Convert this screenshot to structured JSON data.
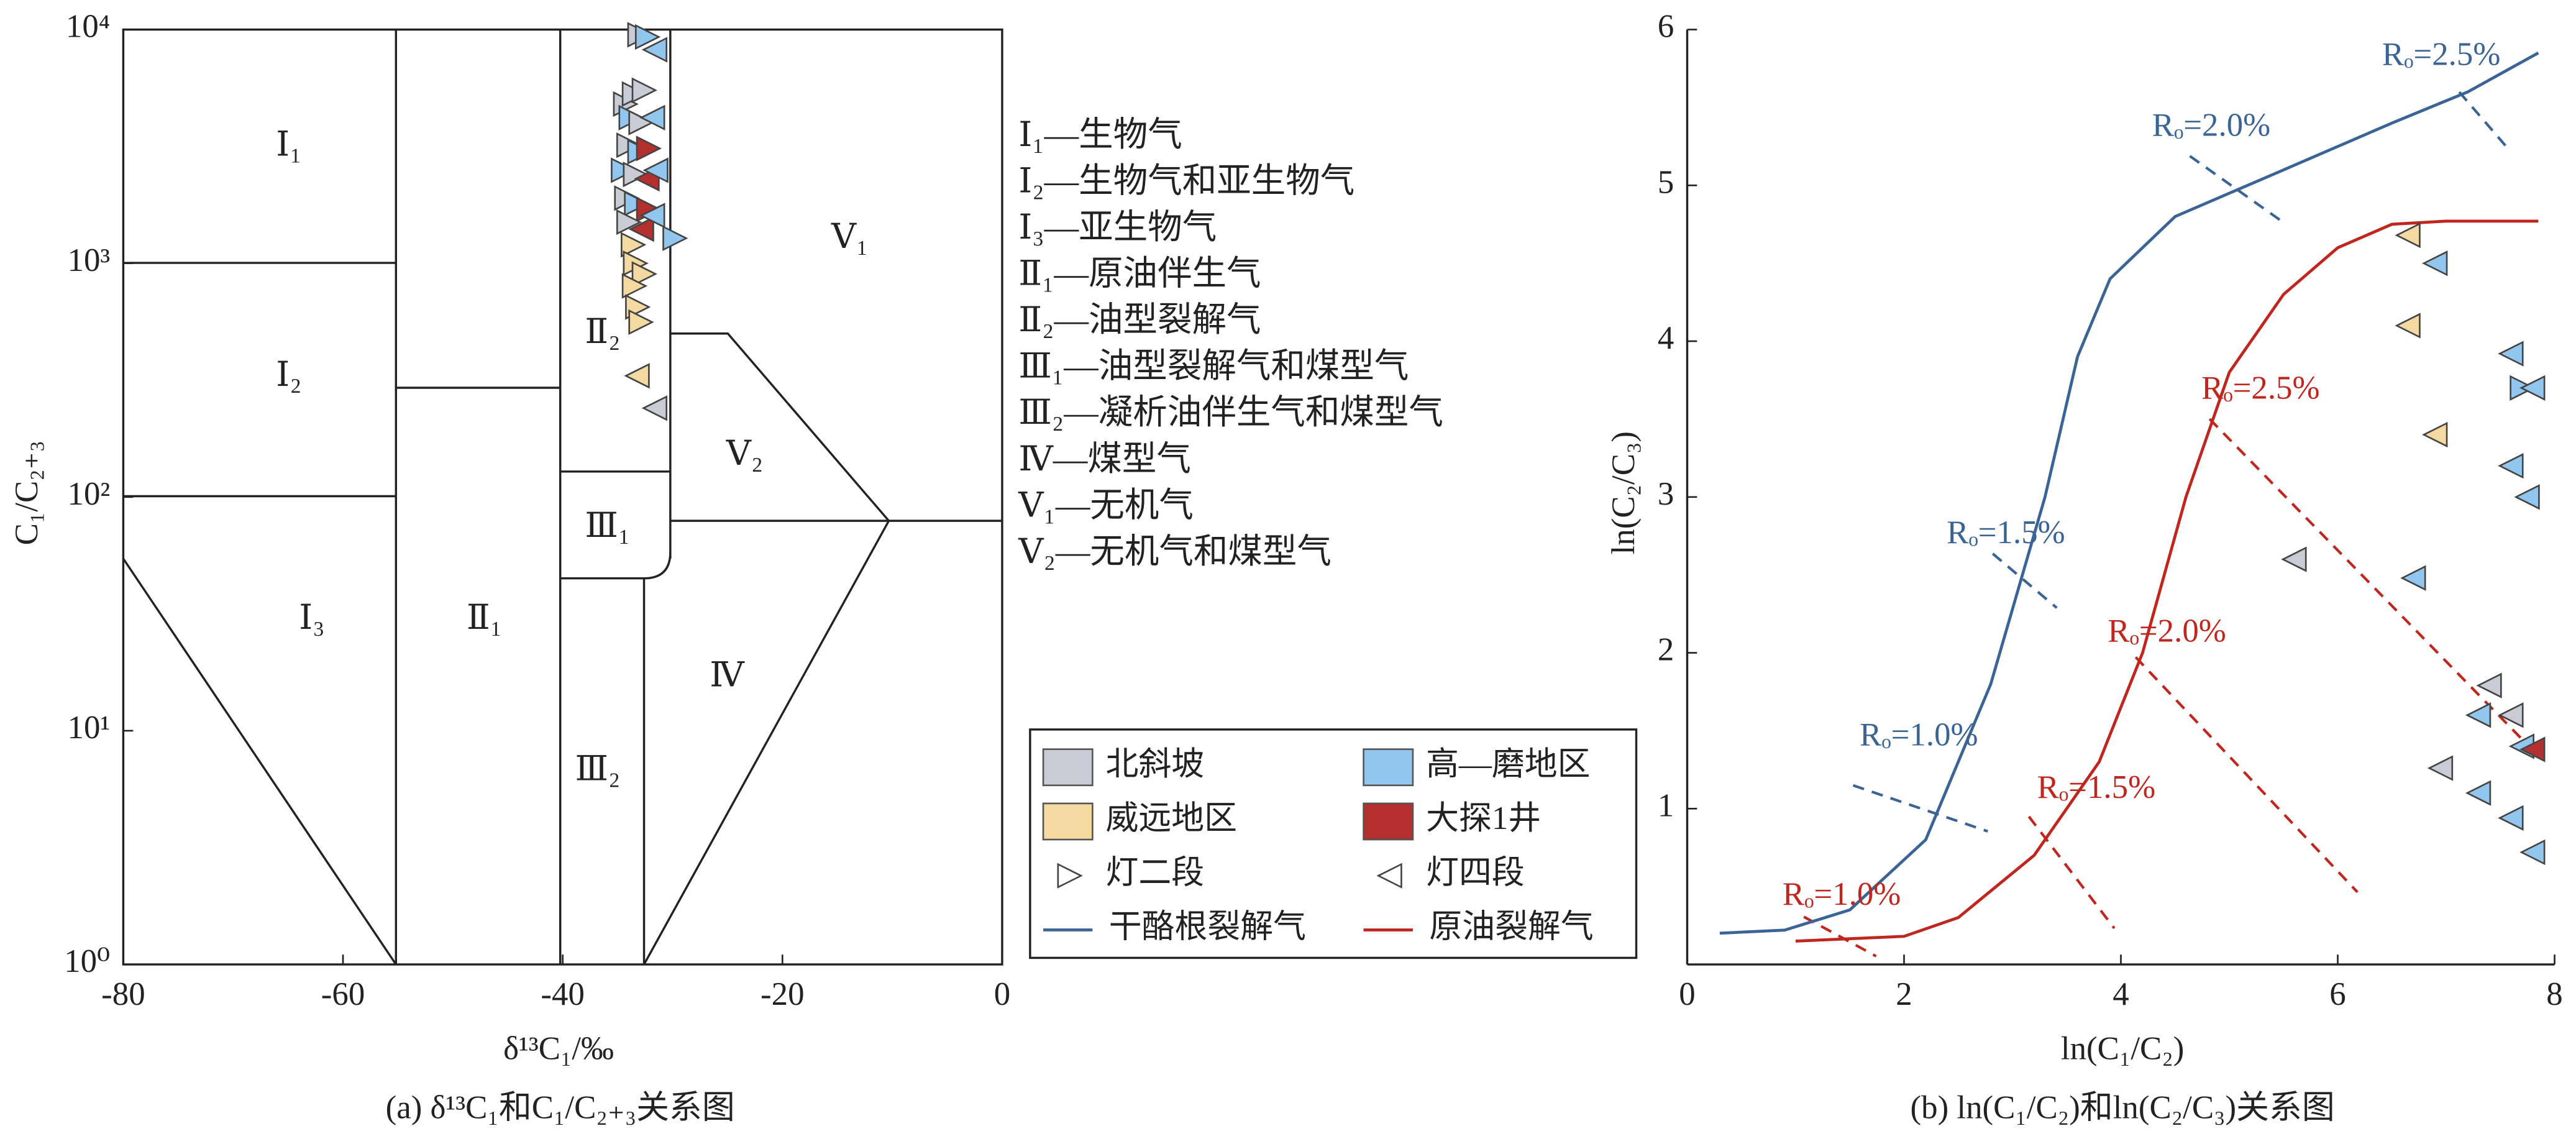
{
  "chart_data": [
    {
      "type": "scatter",
      "ylog": true,
      "xlabel": "δ¹³C₁/‰",
      "ylabel": "C₁/C₂₊₃",
      "caption": "(a) δ¹³C₁和C₁/C₂₊₃关系图",
      "xlim": [
        -80,
        0
      ],
      "ylim": [
        1,
        10000
      ],
      "xticks": [
        -80,
        -60,
        -40,
        -20,
        0
      ],
      "yticks": [
        {
          "value": 1,
          "label": "10⁰"
        },
        {
          "value": 10,
          "label": "10¹"
        },
        {
          "value": 100,
          "label": "10²"
        },
        {
          "value": 1000,
          "label": "10³"
        },
        {
          "value": 10000,
          "label": "10⁴"
        }
      ],
      "regions": [
        "Ⅰ₁",
        "Ⅰ₂",
        "Ⅰ₃",
        "Ⅱ₁",
        "Ⅱ₂",
        "Ⅲ₁",
        "Ⅲ₂",
        "Ⅳ",
        "Ⅴ₁",
        "Ⅴ₂"
      ],
      "region_legend": [
        "Ⅰ₁—生物气",
        "Ⅰ₂—生物气和亚生物气",
        "Ⅰ₃—亚生物气",
        "Ⅱ₁—原油伴生气",
        "Ⅱ₂—油型裂解气",
        "Ⅲ₁—油型裂解气和煤型气",
        "Ⅲ₂—凝析油伴生气和煤型气",
        "Ⅳ—煤型气",
        "Ⅴ₁—无机气",
        "Ⅴ₂—无机气和煤型气"
      ],
      "points": {
        "x": [
          -33.0,
          -32.3,
          -31.6,
          -34.3,
          -33.5,
          -32.6,
          -33.8,
          -32.9,
          -31.8,
          -34.0,
          -33.0,
          -32.2,
          -34.5,
          -33.4,
          -32.3,
          -31.5,
          -34.2,
          -33.3,
          -32.2,
          -34.0,
          -32.8,
          -31.8,
          -29.8,
          -33.6,
          -33.4,
          -32.6,
          -33.5,
          -33.2,
          -32.9,
          -33.2,
          -31.6
        ],
        "y": [
          9500,
          9300,
          8200,
          4800,
          5300,
          5500,
          4200,
          4000,
          4200,
          3200,
          3000,
          3100,
          2500,
          2400,
          2300,
          2500,
          1900,
          1800,
          1700,
          1500,
          1400,
          1600,
          1280,
          1200,
          1000,
          900,
          800,
          650,
          560,
          330,
          240
        ],
        "area": [
          "北斜坡",
          "高—磨地区",
          "高—磨地区",
          "北斜坡",
          "北斜坡",
          "北斜坡",
          "高—磨地区",
          "北斜坡",
          "高—磨地区",
          "北斜坡",
          "高—磨地区",
          "大探1井",
          "高—磨地区",
          "北斜坡",
          "大探1井",
          "高—磨地区",
          "北斜坡",
          "高—磨地区",
          "大探1井",
          "北斜坡",
          "大探1井",
          "高—磨地区",
          "高—磨地区",
          "威远地区",
          "威远地区",
          "威远地区",
          "威远地区",
          "威远地区",
          "威远地区",
          "威远地区",
          "北斜坡"
        ],
        "member": [
          "灯二段",
          "灯二段",
          "灯四段",
          "灯二段",
          "灯二段",
          "灯二段",
          "灯二段",
          "灯二段",
          "灯四段",
          "灯二段",
          "灯二段",
          "灯二段",
          "灯二段",
          "灯二段",
          "灯四段",
          "灯四段",
          "灯二段",
          "灯二段",
          "灯二段",
          "灯二段",
          "灯四段",
          "灯四段",
          "灯二段",
          "灯二段",
          "灯二段",
          "灯二段",
          "灯二段",
          "灯二段",
          "灯二段",
          "灯四段",
          "灯四段"
        ]
      }
    },
    {
      "type": "scatter",
      "ylog": false,
      "xlabel": "ln(C₁/C₂)",
      "ylabel": "ln(C₂/C₃)",
      "caption": "(b) ln(C₁/C₂)和ln(C₂/C₃)关系图",
      "xlim": [
        0,
        8
      ],
      "ylim": [
        0,
        6
      ],
      "xticks": [
        0,
        2,
        4,
        6,
        8
      ],
      "yticks": [
        1,
        2,
        3,
        4,
        5,
        6
      ],
      "series": [
        {
          "name": "干酪根裂解气",
          "color": "#3b6496",
          "x": [
            0.3,
            0.9,
            1.5,
            2.2,
            2.8,
            3.3,
            3.6,
            3.9,
            4.5,
            5.5,
            6.5,
            7.2,
            7.85
          ],
          "y": [
            0.2,
            0.22,
            0.35,
            0.8,
            1.8,
            3.0,
            3.9,
            4.4,
            4.8,
            5.1,
            5.4,
            5.6,
            5.85
          ],
          "ro_labels": [
            "Rₒ=2.5%",
            "Rₒ=2.0%",
            "Rₒ=1.5%",
            "Rₒ=1.0%"
          ]
        },
        {
          "name": "原油裂解气",
          "color": "#c0261e",
          "x": [
            1.0,
            2.0,
            2.5,
            3.2,
            3.8,
            4.2,
            4.6,
            5.0,
            5.5,
            6.0,
            6.5,
            7.0,
            7.85
          ],
          "y": [
            0.15,
            0.18,
            0.3,
            0.7,
            1.3,
            2.0,
            3.0,
            3.8,
            4.3,
            4.6,
            4.75,
            4.77,
            4.77
          ],
          "ro_labels": [
            "Rₒ=2.5%",
            "Rₒ=2.0%",
            "Rₒ=1.5%",
            "Rₒ=1.0%"
          ]
        }
      ],
      "points": {
        "x": [
          6.65,
          6.9,
          6.65,
          7.6,
          7.7,
          7.8,
          6.9,
          7.6,
          7.75,
          5.6,
          6.7,
          7.4,
          7.3,
          7.6,
          7.7,
          7.8,
          6.95,
          7.3,
          7.6,
          7.8
        ],
        "y": [
          4.68,
          4.5,
          4.1,
          3.92,
          3.7,
          3.7,
          3.4,
          3.2,
          3.0,
          2.6,
          2.48,
          1.79,
          1.6,
          1.6,
          1.4,
          1.38,
          1.26,
          1.1,
          0.94,
          0.72
        ],
        "area": [
          "威远地区",
          "高—磨地区",
          "威远地区",
          "高—磨地区",
          "高—磨地区",
          "高—磨地区",
          "威远地区",
          "高—磨地区",
          "高—磨地区",
          "北斜坡",
          "高—磨地区",
          "北斜坡",
          "高—磨地区",
          "北斜坡",
          "高—磨地区",
          "大探1井",
          "北斜坡",
          "高—磨地区",
          "高—磨地区",
          "高—磨地区"
        ],
        "member": [
          "灯四段",
          "灯四段",
          "灯四段",
          "灯四段",
          "灯二段",
          "灯四段",
          "灯四段",
          "灯四段",
          "灯四段",
          "灯四段",
          "灯四段",
          "灯四段",
          "灯四段",
          "灯四段",
          "灯四段",
          "灯四段",
          "灯四段",
          "灯四段",
          "灯四段",
          "灯四段"
        ]
      }
    }
  ],
  "legend": {
    "areas": [
      {
        "name": "北斜坡",
        "color": "#c9ccd4"
      },
      {
        "name": "高—磨地区",
        "color": "#91c6ef"
      },
      {
        "name": "威远地区",
        "color": "#f4d9a1"
      },
      {
        "name": "大探1井",
        "color": "#b3302e"
      }
    ],
    "members": [
      {
        "name": "灯二段",
        "marker": "right"
      },
      {
        "name": "灯四段",
        "marker": "left"
      }
    ]
  }
}
